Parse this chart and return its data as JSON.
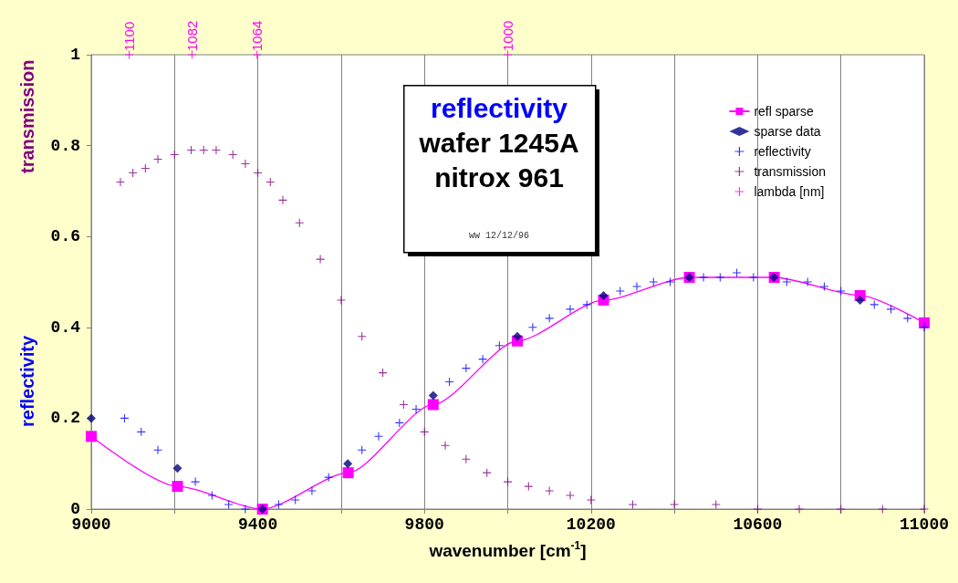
{
  "chart_data": {
    "type": "scatter",
    "title": "reflectivity",
    "subtitle": "wafer 1245A\nnitrox 961",
    "xlabel": "wavenumber [cm$^{-1}$]",
    "ylabel": "reflectivity",
    "annotations": [
      "ww 12/12/96",
      "transmission",
      {
        "text": "1100",
        "x": 9091,
        "y": 1
      },
      {
        "text": "1082",
        "x": 9242,
        "y": 1
      },
      {
        "text": "1064",
        "x": 9398,
        "y": 1
      },
      {
        "text": "1000",
        "x": 10000,
        "y": 1
      }
    ],
    "xlim": [
      9000,
      11000
    ],
    "ylim": [
      0,
      1
    ],
    "xticks": [
      9000,
      {
        "value": 9200,
        "label": null
      },
      9400,
      {
        "value": 9600,
        "label": null
      },
      9800,
      {
        "value": 10000,
        "label": null
      },
      10200,
      {
        "value": 10400,
        "label": null
      },
      10600,
      {
        "value": 10800,
        "label": null
      },
      11000
    ],
    "yticks": [
      0,
      0.2,
      0.4,
      0.6,
      0.8,
      1
    ],
    "grid": "x",
    "legend": "top right",
    "series": [
      {
        "name": "refl sparse",
        "type": "line",
        "marker": "square",
        "line_style": "solid",
        "color": "#ff00ff",
        "x": [
          9000,
          9207,
          9411,
          9617,
          9821,
          10023,
          10230,
          10436,
          10640,
          10846,
          11000
        ],
        "values": [
          0.16,
          0.05,
          0.0,
          0.08,
          0.23,
          0.37,
          0.46,
          0.51,
          0.51,
          0.47,
          0.41
        ]
      },
      {
        "name": "sparse data",
        "marker": "diamond",
        "color": "#000080",
        "x": [
          9000,
          9207,
          9411,
          9616,
          9821,
          10023,
          10230,
          10436,
          10639,
          10846
        ],
        "values": [
          0.2,
          0.09,
          0.0,
          0.1,
          0.25,
          0.38,
          0.47,
          0.51,
          0.51,
          0.46
        ]
      },
      {
        "name": "reflectivity",
        "marker": "cross",
        "color": "#0000ff",
        "x": [
          9080,
          9120,
          9160,
          9200,
          9250,
          9290,
          9330,
          9370,
          9410,
          9450,
          9490,
          9530,
          9570,
          9610,
          9650,
          9690,
          9740,
          9780,
          9820,
          9860,
          9900,
          9940,
          9980,
          10020,
          10060,
          10100,
          10150,
          10190,
          10230,
          10270,
          10310,
          10350,
          10390,
          10430,
          10470,
          10510,
          10550,
          10590,
          10630,
          10670,
          10720,
          10760,
          10800,
          10840,
          10880,
          10920,
          10960,
          11000
        ],
        "values": [
          0.2,
          0.17,
          0.13,
          null,
          0.06,
          0.03,
          0.01,
          0.0,
          null,
          0.01,
          0.02,
          0.04,
          0.07,
          null,
          0.13,
          0.16,
          0.19,
          0.22,
          null,
          0.28,
          0.31,
          0.33,
          0.36,
          null,
          0.4,
          0.42,
          0.44,
          0.45,
          null,
          0.48,
          0.49,
          0.5,
          0.5,
          null,
          0.51,
          0.51,
          0.52,
          0.51,
          null,
          0.5,
          0.5,
          0.49,
          0.48,
          null,
          0.45,
          0.44,
          0.42,
          0.4
        ]
      },
      {
        "name": "transmission",
        "marker": "cross",
        "color": "#800080",
        "x": [
          9070,
          9100,
          9130,
          9160,
          9200,
          9240,
          9270,
          9300,
          9340,
          9370,
          9400,
          9430,
          9460,
          9500,
          9550,
          9600,
          9650,
          9700,
          9750,
          9800,
          9850,
          9900,
          9950,
          10000,
          10050,
          10100,
          10150,
          10200,
          10300,
          10400,
          10500,
          10600,
          10700,
          10800,
          10900,
          11000
        ],
        "values": [
          0.72,
          0.74,
          0.75,
          0.77,
          0.78,
          0.79,
          0.79,
          0.79,
          0.78,
          0.76,
          0.74,
          0.72,
          0.68,
          0.63,
          0.55,
          0.46,
          0.38,
          0.3,
          0.23,
          0.17,
          0.14,
          0.11,
          0.08,
          0.06,
          0.05,
          0.04,
          0.03,
          0.02,
          0.01,
          0.01,
          0.01,
          0.0,
          0.0,
          0.0,
          0.0,
          0.0
        ]
      },
      {
        "name": "lambda [nm]",
        "marker": "cross",
        "color": "#ff00ff",
        "x": [
          9091,
          9242,
          9398,
          10000
        ],
        "values": [
          1,
          1,
          1,
          1
        ]
      }
    ]
  }
}
